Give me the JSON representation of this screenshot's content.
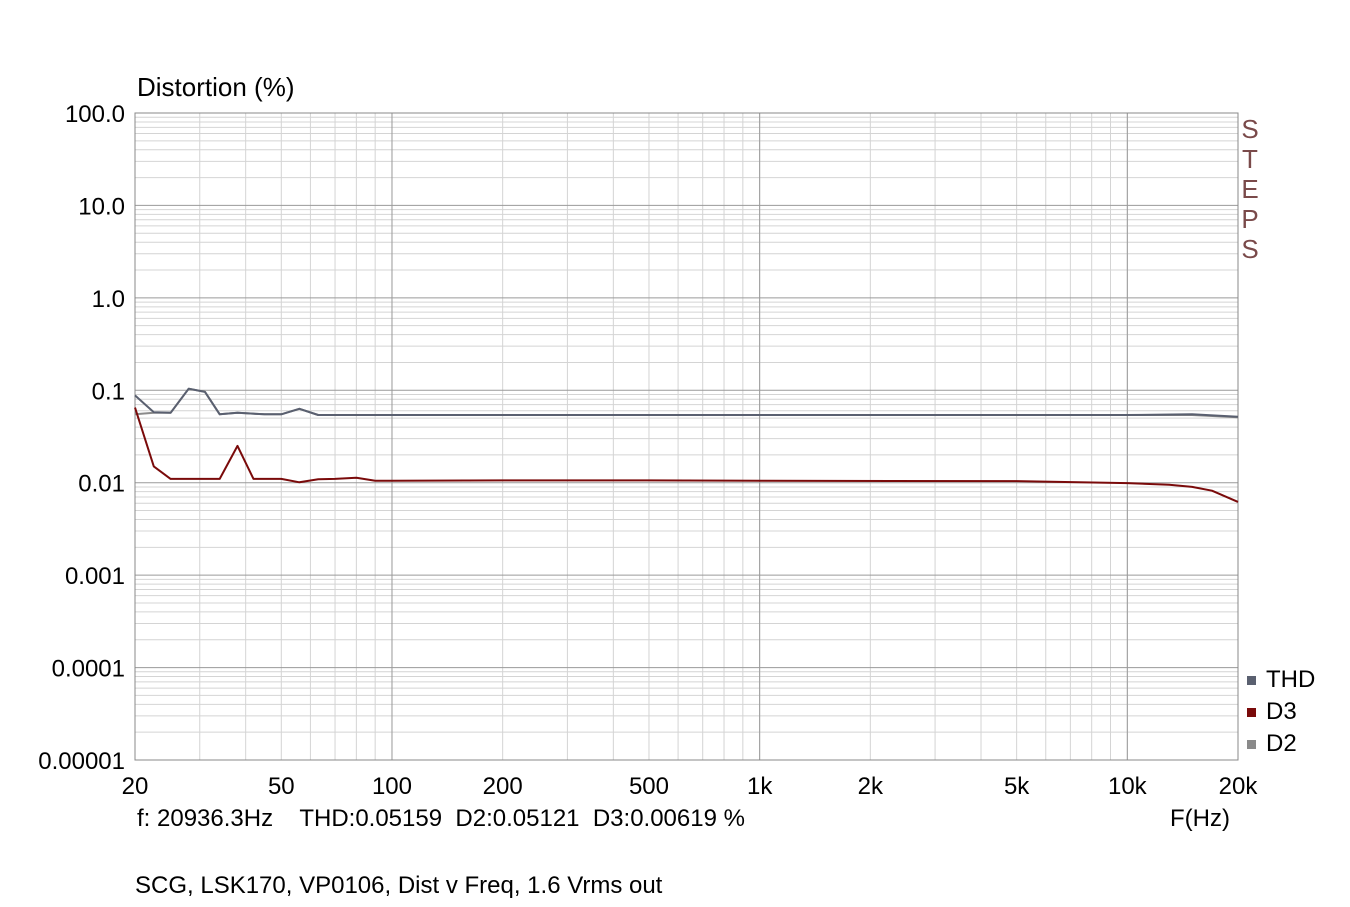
{
  "chart_data": {
    "type": "line",
    "ylabel": "Distortion (%)",
    "xlabel": "F(Hz)",
    "x_scale": "log",
    "y_scale": "log",
    "xlim": [
      20,
      20000
    ],
    "ylim": [
      1e-05,
      100
    ],
    "x_ticks": [
      {
        "value": 20,
        "label": "20"
      },
      {
        "value": 50,
        "label": "50"
      },
      {
        "value": 100,
        "label": "100"
      },
      {
        "value": 200,
        "label": "200"
      },
      {
        "value": 500,
        "label": "500"
      },
      {
        "value": 1000,
        "label": "1k"
      },
      {
        "value": 2000,
        "label": "2k"
      },
      {
        "value": 5000,
        "label": "5k"
      },
      {
        "value": 10000,
        "label": "10k"
      },
      {
        "value": 20000,
        "label": "20k"
      }
    ],
    "y_ticks": [
      {
        "value": 100,
        "label": "100.0"
      },
      {
        "value": 10,
        "label": "10.0"
      },
      {
        "value": 1,
        "label": "1.0"
      },
      {
        "value": 0.1,
        "label": "0.1"
      },
      {
        "value": 0.01,
        "label": "0.01"
      },
      {
        "value": 0.001,
        "label": "0.001"
      },
      {
        "value": 0.0001,
        "label": "0.0001"
      },
      {
        "value": 1e-05,
        "label": "0.00001"
      }
    ],
    "grid": true,
    "legend_position": "bottom-right",
    "series": [
      {
        "name": "THD",
        "color": "#5a6070",
        "points": [
          [
            20,
            0.088
          ],
          [
            22.5,
            0.058
          ],
          [
            25,
            0.057
          ],
          [
            28,
            0.104
          ],
          [
            31,
            0.096
          ],
          [
            34,
            0.055
          ],
          [
            38,
            0.057
          ],
          [
            45,
            0.055
          ],
          [
            50,
            0.055
          ],
          [
            56,
            0.063
          ],
          [
            63,
            0.054
          ],
          [
            80,
            0.054
          ],
          [
            100,
            0.054
          ],
          [
            500,
            0.054
          ],
          [
            1000,
            0.054
          ],
          [
            5000,
            0.054
          ],
          [
            10000,
            0.054
          ],
          [
            15000,
            0.055
          ],
          [
            20000,
            0.0516
          ]
        ]
      },
      {
        "name": "D3",
        "color": "#7a0a0a",
        "points": [
          [
            20,
            0.065
          ],
          [
            22.5,
            0.015
          ],
          [
            25,
            0.011
          ],
          [
            28,
            0.011
          ],
          [
            34,
            0.011
          ],
          [
            38,
            0.025
          ],
          [
            42,
            0.011
          ],
          [
            50,
            0.011
          ],
          [
            56,
            0.0101
          ],
          [
            63,
            0.0109
          ],
          [
            70,
            0.011
          ],
          [
            80,
            0.0113
          ],
          [
            90,
            0.0105
          ],
          [
            100,
            0.0105
          ],
          [
            200,
            0.0106
          ],
          [
            500,
            0.0106
          ],
          [
            1000,
            0.0105
          ],
          [
            5000,
            0.0104
          ],
          [
            10000,
            0.0099
          ],
          [
            13000,
            0.0095
          ],
          [
            15000,
            0.009
          ],
          [
            17000,
            0.0082
          ],
          [
            20000,
            0.0062
          ]
        ]
      },
      {
        "name": "D2",
        "color": "#8a8a8a",
        "points": [
          [
            20,
            0.055
          ],
          [
            22.5,
            0.057
          ],
          [
            25,
            0.057
          ],
          [
            28,
            0.104
          ],
          [
            31,
            0.096
          ],
          [
            34,
            0.055
          ],
          [
            38,
            0.057
          ],
          [
            45,
            0.055
          ],
          [
            50,
            0.055
          ],
          [
            56,
            0.063
          ],
          [
            63,
            0.054
          ],
          [
            80,
            0.054
          ],
          [
            100,
            0.054
          ],
          [
            500,
            0.054
          ],
          [
            1000,
            0.054
          ],
          [
            5000,
            0.054
          ],
          [
            10000,
            0.054
          ],
          [
            15000,
            0.054
          ],
          [
            20000,
            0.0512
          ]
        ]
      }
    ]
  },
  "readout": {
    "text": "f: 20936.3Hz    THD:0.05159  D2:0.05121  D3:0.00619 %"
  },
  "steps_letters": [
    "S",
    "T",
    "E",
    "P",
    "S"
  ],
  "footer": "SCG, LSK170, VP0106, Dist v Freq, 1.6 Vrms out"
}
